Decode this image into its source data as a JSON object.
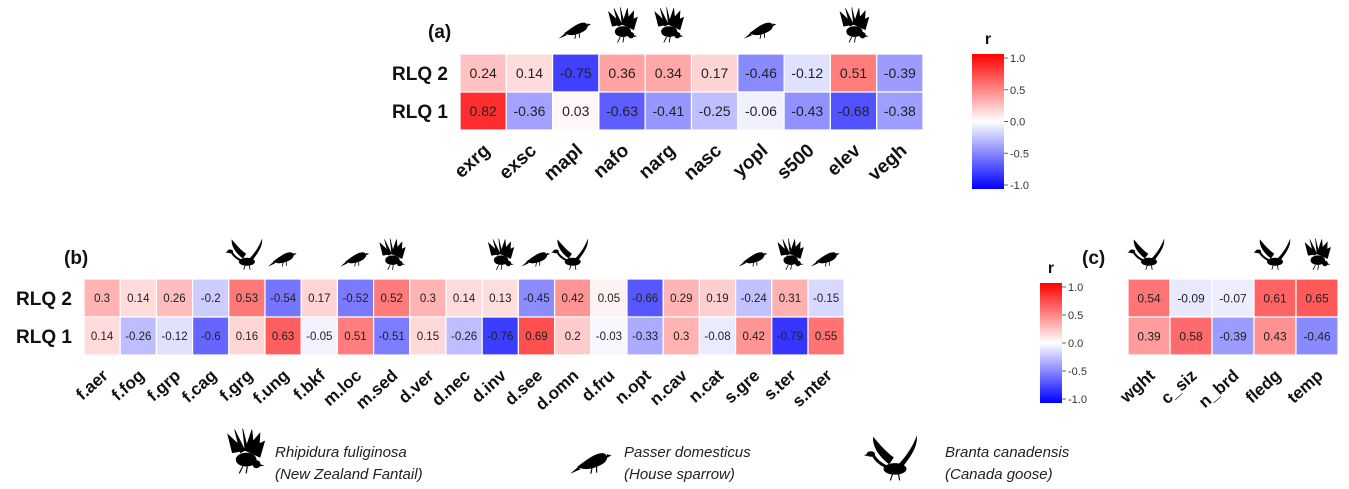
{
  "chart_data": [
    {
      "type": "heatmap",
      "panel_label": "(a)",
      "rows": [
        "RLQ 2",
        "RLQ 1"
      ],
      "columns": [
        "exrg",
        "exsc",
        "mapl",
        "nafo",
        "narg",
        "nasc",
        "yopl",
        "s500",
        "elev",
        "vegh"
      ],
      "values": [
        [
          0.24,
          0.14,
          -0.75,
          0.36,
          0.34,
          0.17,
          -0.46,
          -0.12,
          0.51,
          -0.39
        ],
        [
          0.82,
          -0.36,
          0.03,
          -0.63,
          -0.41,
          -0.25,
          -0.06,
          -0.43,
          -0.68,
          -0.38
        ]
      ],
      "icons": [
        null,
        null,
        "sparrow",
        "fantail",
        "fantail",
        null,
        "sparrow",
        null,
        "fantail",
        null
      ],
      "scale": [
        -1,
        1
      ],
      "legend_title": "r",
      "legend_ticks": [
        "1.0",
        "0.5",
        "0.0",
        "-0.5",
        "-1.0"
      ]
    },
    {
      "type": "heatmap",
      "panel_label": "(b)",
      "rows": [
        "RLQ 2",
        "RLQ 1"
      ],
      "columns": [
        "f.aer",
        "f.fog",
        "f.grp",
        "f.cag",
        "f.grg",
        "f.ung",
        "f.bkf",
        "m.loc",
        "m.sed",
        "d.ver",
        "d.nec",
        "d.inv",
        "d.see",
        "d.omn",
        "d.fru",
        "n.opt",
        "n.cav",
        "n.cat",
        "s.gre",
        "s.ter",
        "s.nter"
      ],
      "values": [
        [
          0.3,
          0.14,
          0.26,
          -0.2,
          0.53,
          -0.54,
          0.17,
          -0.52,
          0.52,
          0.3,
          0.14,
          0.13,
          -0.45,
          0.42,
          0.05,
          -0.66,
          0.29,
          0.19,
          -0.24,
          0.31,
          -0.15
        ],
        [
          0.14,
          -0.26,
          -0.12,
          -0.6,
          0.16,
          0.63,
          -0.05,
          0.51,
          -0.51,
          0.15,
          -0.26,
          -0.76,
          0.69,
          0.2,
          -0.03,
          -0.33,
          0.3,
          -0.08,
          0.42,
          -0.79,
          0.55
        ]
      ],
      "icons": [
        null,
        null,
        null,
        null,
        "goose",
        "sparrow",
        null,
        "sparrow",
        "fantail",
        null,
        null,
        "fantail",
        "sparrow",
        "goose",
        null,
        null,
        null,
        null,
        "sparrow",
        "fantail",
        "sparrow"
      ],
      "scale": [
        -1,
        1
      ],
      "legend_title": "r",
      "legend_ticks": [
        "1.0",
        "0.5",
        "0.0",
        "-0.5",
        "-1.0"
      ]
    },
    {
      "type": "heatmap",
      "panel_label": "(c)",
      "rows": [
        "RLQ 2",
        "RLQ 1"
      ],
      "columns": [
        "wght",
        "c_siz",
        "n_brd",
        "fledg",
        "temp"
      ],
      "values": [
        [
          0.54,
          -0.09,
          -0.07,
          0.61,
          0.65
        ],
        [
          0.39,
          0.58,
          -0.39,
          0.43,
          -0.46
        ]
      ],
      "icons": [
        "goose",
        null,
        null,
        "goose",
        "fantail"
      ],
      "scale": [
        -1,
        1
      ]
    }
  ],
  "species_legend": [
    {
      "icon": "fantail",
      "latin": "Rhipidura fuliginosa",
      "common": "(New Zealand Fantail)"
    },
    {
      "icon": "sparrow",
      "latin": "Passer domesticus",
      "common": "(House sparrow)"
    },
    {
      "icon": "goose",
      "latin": "Branta canadensis",
      "common": "(Canada goose)"
    }
  ],
  "colors": {
    "negative": "#0000ff",
    "zero": "#ffffff",
    "positive": "#ff0000",
    "icon": "#000000"
  }
}
